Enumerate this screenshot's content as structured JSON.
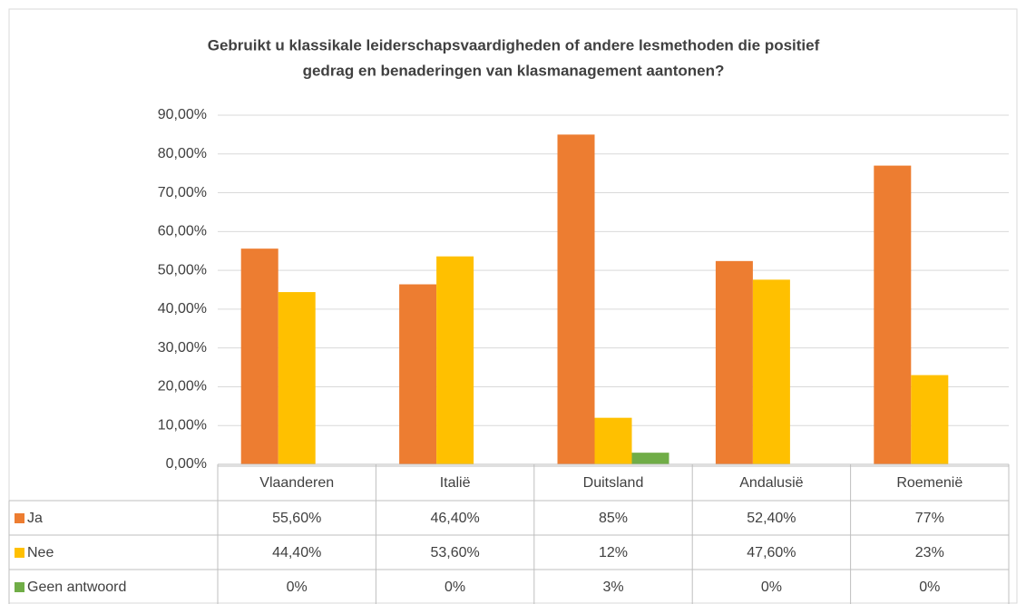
{
  "chart_data": {
    "type": "bar",
    "title": [
      "Gebruikt u klassikale leiderschapsvaardigheden of andere lesmethoden die positief",
      "gedrag en benaderingen van klasmanagement aantonen?"
    ],
    "categories": [
      "Vlaanderen",
      "Italië",
      "Duitsland",
      "Andalusië",
      "Roemenië"
    ],
    "series": [
      {
        "name": "Ja",
        "color": "#ed7d31",
        "values": [
          55.6,
          46.4,
          85,
          52.4,
          77
        ],
        "value_labels": [
          "55,60%",
          "46,40%",
          "85%",
          "52,40%",
          "77%"
        ]
      },
      {
        "name": "Nee",
        "color": "#ffc000",
        "values": [
          44.4,
          53.6,
          12,
          47.6,
          23
        ],
        "value_labels": [
          "44,40%",
          "53,60%",
          "12%",
          "47,60%",
          "23%"
        ]
      },
      {
        "name": "Geen antwoord",
        "color": "#70ad47",
        "values": [
          0,
          0,
          3,
          0,
          0
        ],
        "value_labels": [
          "0%",
          "0%",
          "3%",
          "0%",
          "0%"
        ]
      }
    ],
    "ylim": [
      0,
      90
    ],
    "yticks": [
      {
        "value": 0,
        "label": "0,00%"
      },
      {
        "value": 10,
        "label": "10,00%"
      },
      {
        "value": 20,
        "label": "20,00%"
      },
      {
        "value": 30,
        "label": "30,00%"
      },
      {
        "value": 40,
        "label": "40,00%"
      },
      {
        "value": 50,
        "label": "50,00%"
      },
      {
        "value": 60,
        "label": "60,00%"
      },
      {
        "value": 70,
        "label": "70,00%"
      },
      {
        "value": 80,
        "label": "80,00%"
      },
      {
        "value": 90,
        "label": "90,00%"
      }
    ],
    "grid": true
  }
}
